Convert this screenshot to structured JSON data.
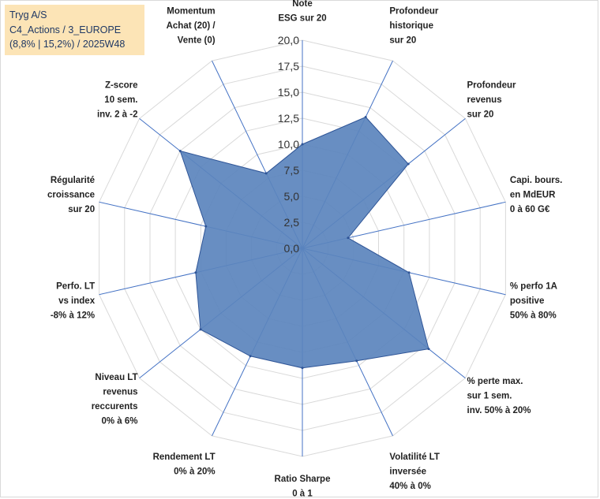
{
  "title": {
    "line1": "Tryg A/S",
    "line2": "C4_Actions / 3_EUROPE",
    "line3": "(8,8% | 15,2%) / 2025W48"
  },
  "colors": {
    "fill": "#5b84bd",
    "stroke": "#2f5597",
    "spoke": "#4472c4",
    "grid": "#d9d9d9",
    "title_bg": "#fce4b6",
    "title_text": "#1f3864"
  },
  "chart_data": {
    "type": "radar",
    "ylim": [
      0,
      20
    ],
    "ticks": [
      "0,0",
      "2,5",
      "5,0",
      "7,5",
      "10,0",
      "12,5",
      "15,0",
      "17,5",
      "20,0"
    ],
    "tick_values": [
      0,
      2.5,
      5,
      7.5,
      10,
      12.5,
      15,
      17.5,
      20
    ],
    "categories": [
      [
        "Note",
        "ESG sur 20"
      ],
      [
        "Profondeur",
        "historique",
        "sur 20"
      ],
      [
        "Profondeur",
        "revenus",
        "sur 20"
      ],
      [
        "Capi. bours.",
        "en MdEUR",
        "0 à 60 G€"
      ],
      [
        "% perfo 1A",
        "positive",
        "50% à 80%"
      ],
      [
        "% perte max.",
        "sur 1 sem.",
        "inv. 50% à 20%"
      ],
      [
        "Volatilité LT",
        "inversée",
        "40% à 0%"
      ],
      [
        "Ratio Sharpe",
        "0 à 1"
      ],
      [
        "Rendement LT",
        "0% à 20%"
      ],
      [
        "Niveau LT",
        "revenus",
        "reccurents",
        "0% à 6%"
      ],
      [
        "Perfo. LT",
        "vs index",
        "-8% à 12%"
      ],
      [
        "Régularité",
        "croissance",
        "sur 20"
      ],
      [
        "Z-score",
        "10 sem.",
        "inv. 2 à -2"
      ],
      [
        "Momentum",
        "Achat (20) /",
        "Vente (0)"
      ]
    ],
    "series": [
      {
        "values": [
          10,
          14,
          13,
          4.5,
          10.5,
          15.5,
          12,
          11.5,
          11.5,
          12.5,
          10.5,
          9.5,
          15,
          8
        ]
      }
    ],
    "grid": true
  }
}
